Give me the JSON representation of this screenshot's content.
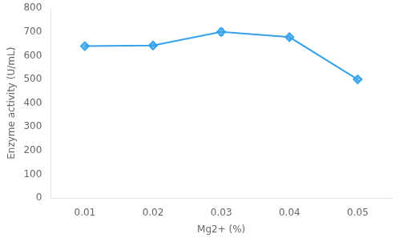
{
  "chart_data": {
    "type": "line",
    "x": [
      0.01,
      0.02,
      0.03,
      0.04,
      0.05
    ],
    "values": [
      640,
      643,
      700,
      678,
      500
    ],
    "yerr": [
      5,
      5,
      15,
      8,
      5
    ],
    "xlabel": "Mg2+ (%)",
    "ylabel": "Enzyme activity (U/mL)",
    "xlim": [
      0.005,
      0.055
    ],
    "xticks": [
      0.01,
      0.02,
      0.03,
      0.04,
      0.05
    ],
    "ylim": [
      0,
      800
    ],
    "yticks": [
      0,
      100,
      200,
      300,
      400,
      500,
      600,
      700,
      800
    ],
    "marker": "diamond",
    "grid": false
  }
}
